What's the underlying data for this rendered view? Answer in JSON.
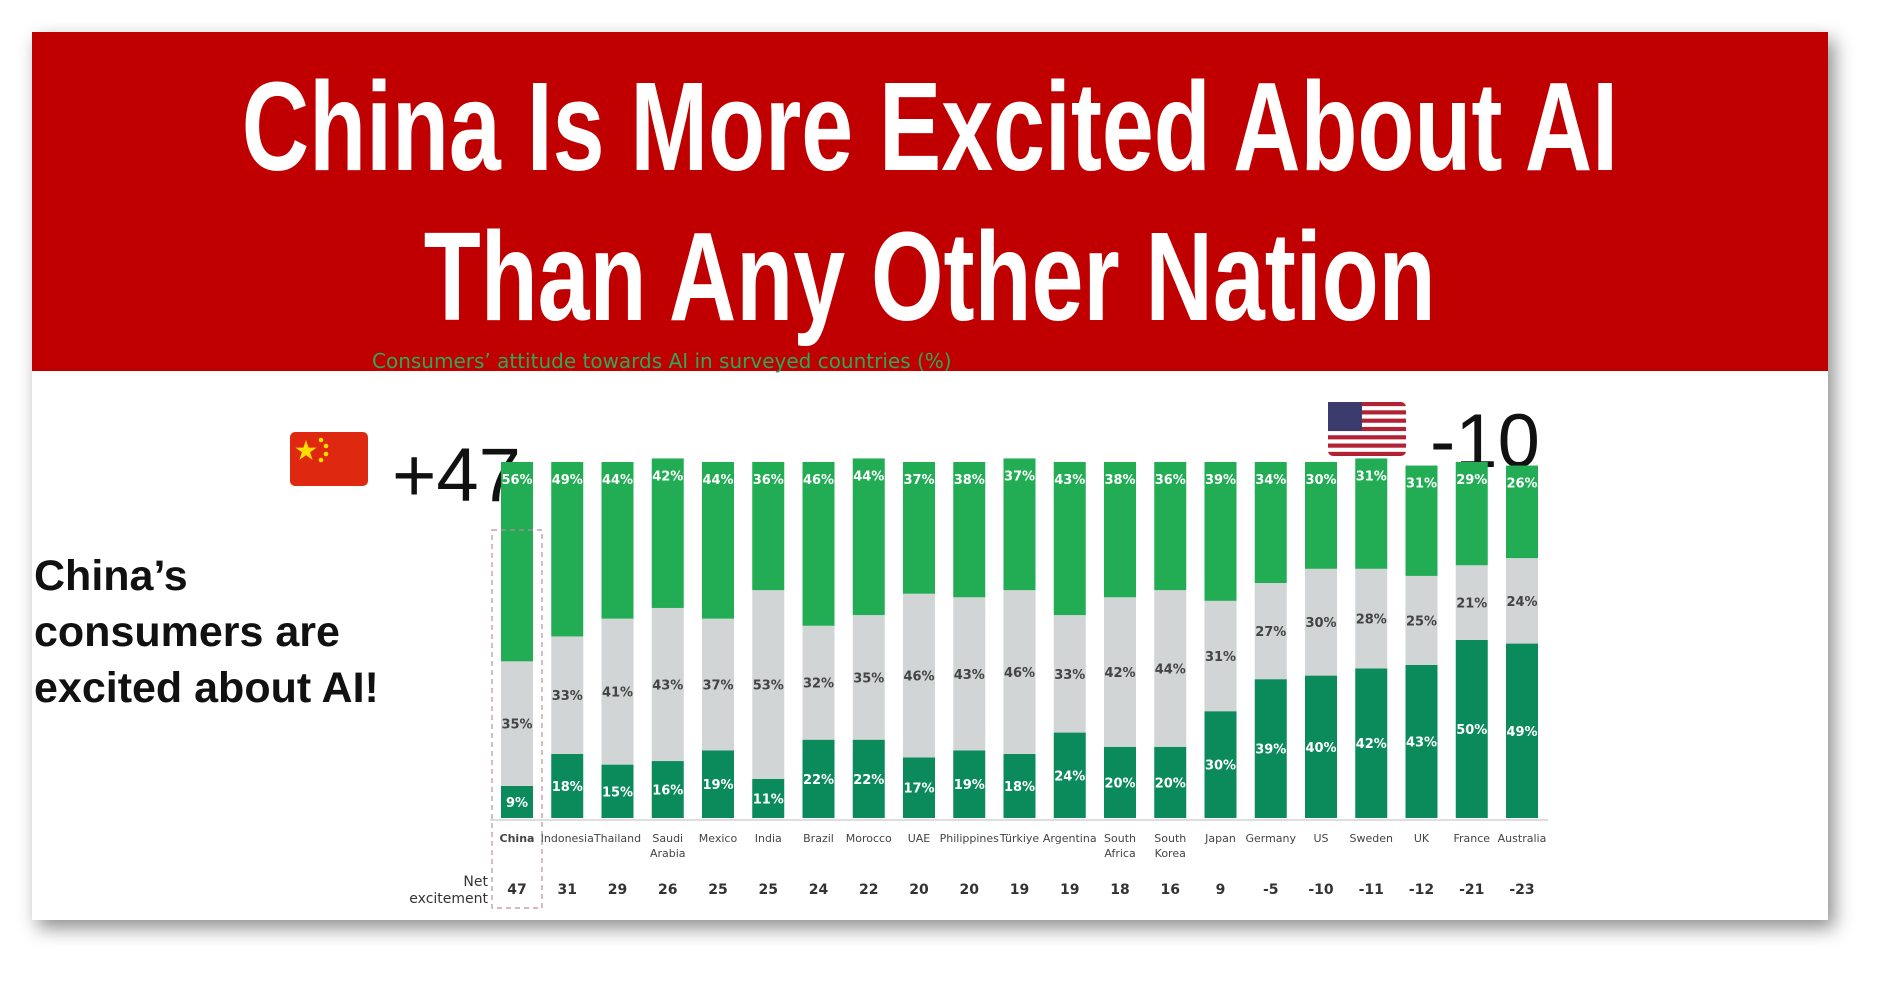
{
  "banner": {
    "line1": "China Is More Excited About AI",
    "line2": "Than Any Other Nation"
  },
  "chart_subtitle": "Consumers’ attitude towards AI in surveyed countries (%)",
  "china_callout": {
    "flag": "🇨🇳",
    "value": "+47"
  },
  "us_callout": {
    "flag": "🇺🇸",
    "value": "-10"
  },
  "side_text": [
    "China’s",
    "consumers are",
    "excited about AI!"
  ],
  "net_title": [
    "Net",
    "excitement"
  ],
  "colors": {
    "banner": "#c00000",
    "top": "#22ad55",
    "middle": "#d2d5d5",
    "bottom": "#0b8a5c",
    "highlight": "#c2185b"
  },
  "chart_data": {
    "type": "bar",
    "stacked": true,
    "categories": [
      "China",
      "Indonesia",
      "Thailand",
      "Saudi Arabia",
      "Mexico",
      "India",
      "Brazil",
      "Morocco",
      "UAE",
      "Philippines",
      "Türkiye",
      "Argentina",
      "South Africa",
      "South Korea",
      "Japan",
      "Germany",
      "US",
      "Sweden",
      "UK",
      "France",
      "Australia"
    ],
    "series": [
      {
        "values": [
          9,
          18,
          15,
          16,
          19,
          11,
          22,
          22,
          17,
          19,
          18,
          24,
          20,
          20,
          30,
          39,
          40,
          42,
          43,
          50,
          49
        ]
      },
      {
        "values": [
          35,
          33,
          41,
          43,
          37,
          53,
          32,
          35,
          46,
          43,
          46,
          33,
          42,
          44,
          31,
          27,
          30,
          28,
          25,
          21,
          24
        ]
      },
      {
        "values": [
          56,
          49,
          44,
          42,
          44,
          36,
          46,
          44,
          37,
          38,
          37,
          43,
          38,
          36,
          39,
          34,
          30,
          31,
          31,
          29,
          26
        ]
      }
    ],
    "net_excitement": [
      "47",
      "31",
      "29",
      "26",
      "25",
      "25",
      "24",
      "22",
      "20",
      "20",
      "19",
      "19",
      "18",
      "16",
      "9",
      "-5",
      "-10",
      "-11",
      "-12",
      "-21",
      "-23"
    ],
    "highlight_category": "China"
  }
}
